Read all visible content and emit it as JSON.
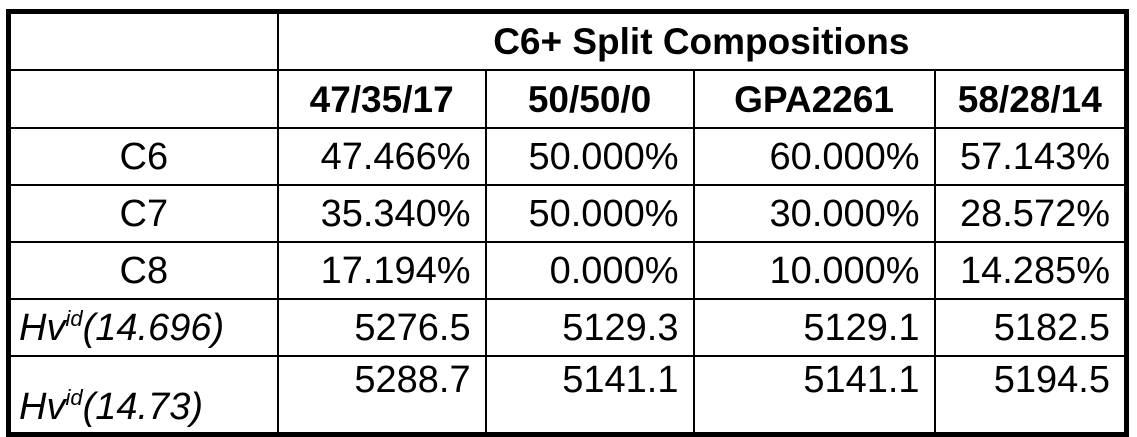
{
  "table": {
    "title": "C6+ Split Compositions",
    "columns": [
      "47/35/17",
      "50/50/0",
      "GPA2261",
      "58/28/14"
    ],
    "rows": [
      {
        "label": "C6",
        "values": [
          "47.466%",
          "50.000%",
          "60.000%",
          "57.143%"
        ]
      },
      {
        "label": "C7",
        "values": [
          "35.340%",
          "50.000%",
          "30.000%",
          "28.572%"
        ]
      },
      {
        "label": "C8",
        "values": [
          "17.194%",
          "0.000%",
          "10.000%",
          "14.285%"
        ]
      }
    ],
    "hv_rows": [
      {
        "base": "Hv",
        "sup": "id",
        "arg": "(14.696)",
        "values": [
          "5276.5",
          "5129.3",
          "5129.1",
          "5182.5"
        ]
      },
      {
        "base": "Hv",
        "sup": "id",
        "arg": "(14.73)",
        "values": [
          "5288.7",
          "5141.1",
          "5141.1",
          "5194.5"
        ]
      }
    ]
  }
}
